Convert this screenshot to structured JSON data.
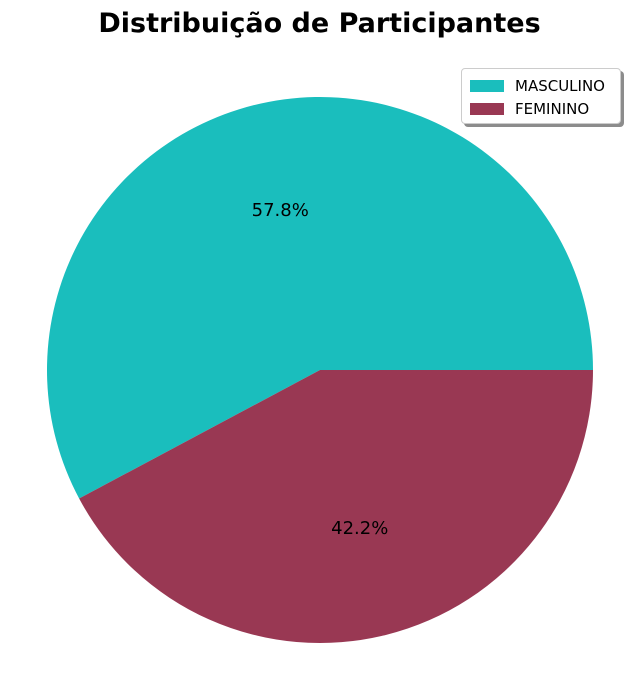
{
  "chart_data": {
    "type": "pie",
    "title": "Distribuição de Participantes",
    "categories": [
      "MASCULINO",
      "FEMININO"
    ],
    "values": [
      57.8,
      42.2
    ],
    "labels": [
      "57.8%",
      "42.2%"
    ],
    "colors": [
      "#1abebd",
      "#993853"
    ],
    "legend": {
      "position": "top-right",
      "entries": [
        "MASCULINO",
        "FEMININO"
      ]
    }
  }
}
